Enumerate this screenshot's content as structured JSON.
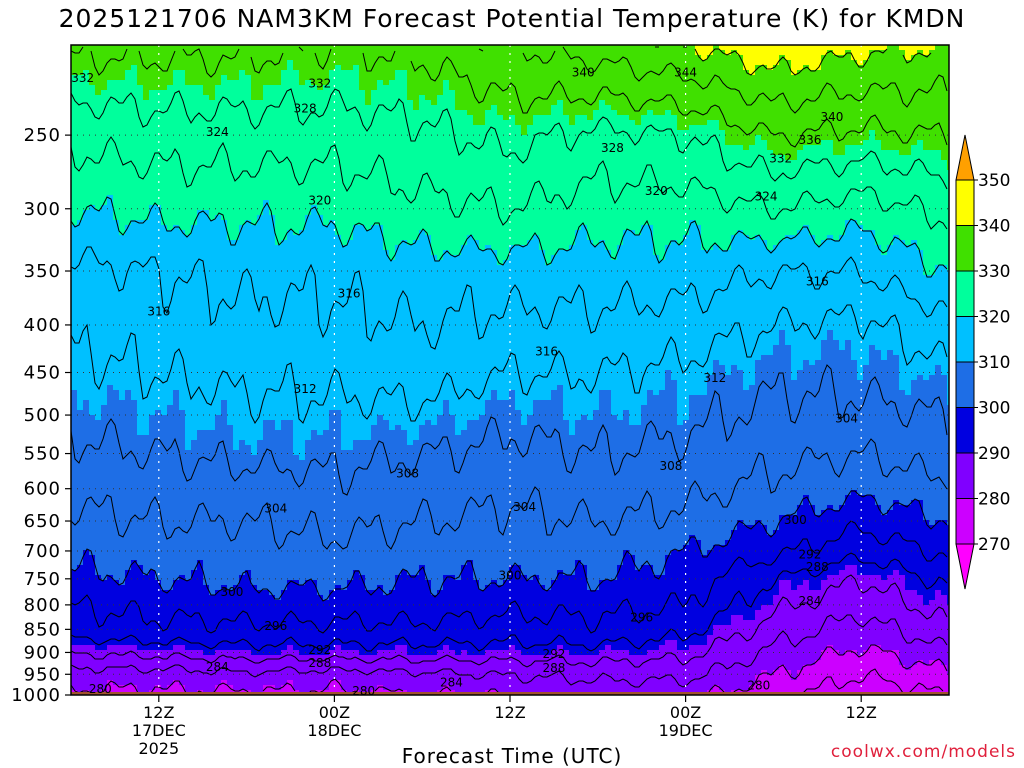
{
  "title": "2025121706 NAM3KM Forecast Potential Temperature (K) for KMDN",
  "watermark": "coolwx.com/models",
  "chart_data": {
    "type": "heatmap",
    "title": "2025121706 NAM3KM Forecast Potential Temperature (K) for KMDN",
    "xlabel": "Forecast Time (UTC)",
    "ylabel": "",
    "y_scale": "log",
    "y_inverted": true,
    "ylim": [
      1000,
      200
    ],
    "y_ticks": [
      250,
      300,
      350,
      400,
      450,
      500,
      550,
      600,
      650,
      700,
      750,
      800,
      850,
      900,
      950,
      1000
    ],
    "x_unit": "forecast hour",
    "xlim": [
      0,
      60
    ],
    "x_ticks": [
      {
        "hour": 6,
        "lines": [
          "12Z",
          "17DEC",
          "2025"
        ]
      },
      {
        "hour": 18,
        "lines": [
          "00Z",
          "18DEC"
        ]
      },
      {
        "hour": 30,
        "lines": [
          "12Z"
        ]
      },
      {
        "hour": 42,
        "lines": [
          "00Z",
          "19DEC"
        ]
      },
      {
        "hour": 54,
        "lines": [
          "12Z"
        ]
      }
    ],
    "grid": true,
    "colorbar": {
      "levels": [
        270,
        280,
        290,
        300,
        310,
        320,
        330,
        340,
        350
      ],
      "colors": [
        "#ff00ff",
        "#cc00ff",
        "#8000ff",
        "#0000e0",
        "#1e6ee6",
        "#00c0ff",
        "#00ff9c",
        "#40e000",
        "#ffff00",
        "#ffa000"
      ]
    },
    "ground_color": "#a0522d",
    "isotherm_labels": [
      {
        "value": "332",
        "hour": 0.8,
        "p": 217
      },
      {
        "value": "332",
        "hour": 17,
        "p": 220
      },
      {
        "value": "328",
        "hour": 16,
        "p": 234
      },
      {
        "value": "324",
        "hour": 10,
        "p": 248
      },
      {
        "value": "320",
        "hour": 17,
        "p": 294
      },
      {
        "value": "316",
        "hour": 6,
        "p": 387
      },
      {
        "value": "316",
        "hour": 19,
        "p": 370
      },
      {
        "value": "316",
        "hour": 32.5,
        "p": 427
      },
      {
        "value": "316",
        "hour": 51,
        "p": 359
      },
      {
        "value": "312",
        "hour": 16,
        "p": 469
      },
      {
        "value": "312",
        "hour": 44,
        "p": 456
      },
      {
        "value": "308",
        "hour": 23,
        "p": 578
      },
      {
        "value": "308",
        "hour": 41,
        "p": 567
      },
      {
        "value": "304",
        "hour": 14,
        "p": 630
      },
      {
        "value": "304",
        "hour": 31,
        "p": 628
      },
      {
        "value": "304",
        "hour": 53,
        "p": 504
      },
      {
        "value": "300",
        "hour": 11,
        "p": 775
      },
      {
        "value": "300",
        "hour": 30,
        "p": 744
      },
      {
        "value": "300",
        "hour": 49.5,
        "p": 648
      },
      {
        "value": "296",
        "hour": 14,
        "p": 843
      },
      {
        "value": "296",
        "hour": 39,
        "p": 825
      },
      {
        "value": "292",
        "hour": 17,
        "p": 895
      },
      {
        "value": "292",
        "hour": 33,
        "p": 903
      },
      {
        "value": "292",
        "hour": 50.5,
        "p": 706
      },
      {
        "value": "288",
        "hour": 17,
        "p": 924
      },
      {
        "value": "288",
        "hour": 33,
        "p": 935
      },
      {
        "value": "288",
        "hour": 51,
        "p": 728
      },
      {
        "value": "284",
        "hour": 10,
        "p": 933
      },
      {
        "value": "284",
        "hour": 26,
        "p": 970
      },
      {
        "value": "284",
        "hour": 50.5,
        "p": 792
      },
      {
        "value": "280",
        "hour": 2,
        "p": 985
      },
      {
        "value": "280",
        "hour": 20,
        "p": 990
      },
      {
        "value": "280",
        "hour": 47,
        "p": 977
      },
      {
        "value": "340",
        "hour": 35,
        "p": 214
      },
      {
        "value": "344",
        "hour": 42,
        "p": 214
      },
      {
        "value": "340",
        "hour": 52,
        "p": 239
      },
      {
        "value": "336",
        "hour": 50.5,
        "p": 253
      },
      {
        "value": "332",
        "hour": 48.5,
        "p": 265
      },
      {
        "value": "328",
        "hour": 37,
        "p": 258
      },
      {
        "value": "324",
        "hour": 47.5,
        "p": 291
      },
      {
        "value": "320",
        "hour": 40,
        "p": 287
      }
    ],
    "field": {
      "description_of_values": "potential temperature in K at pressure levels (hPa) and forecast hours",
      "pressure_levels": [
        1000,
        950,
        900,
        850,
        800,
        750,
        700,
        650,
        600,
        550,
        500,
        450,
        400,
        350,
        300,
        250,
        200
      ],
      "profiles": [
        {
          "hour": 0,
          "theta": [
            279,
            282,
            288,
            294,
            296,
            299,
            301,
            303,
            305,
            307,
            309,
            311,
            313,
            315,
            320,
            325,
            333
          ]
        },
        {
          "hour": 6,
          "theta": [
            279,
            282,
            289,
            295,
            297,
            300,
            302,
            304,
            306,
            308,
            310,
            312,
            314,
            316,
            321,
            326,
            333
          ]
        },
        {
          "hour": 12,
          "theta": [
            279,
            283,
            290,
            295,
            298,
            301,
            302,
            304,
            306,
            309,
            311,
            313,
            315,
            317,
            321,
            326,
            333
          ]
        },
        {
          "hour": 18,
          "theta": [
            279,
            282,
            290,
            295,
            298,
            301,
            303,
            305,
            307,
            309,
            311,
            313,
            315,
            317,
            321,
            326,
            332
          ]
        },
        {
          "hour": 24,
          "theta": [
            280,
            283,
            290,
            295,
            298,
            300,
            302,
            304,
            306,
            308,
            311,
            314,
            316,
            318,
            323,
            327,
            333
          ]
        },
        {
          "hour": 30,
          "theta": [
            280,
            284,
            290,
            294,
            297,
            300,
            302,
            303,
            305,
            307,
            309,
            312,
            315,
            318,
            324,
            329,
            336
          ]
        },
        {
          "hour": 36,
          "theta": [
            281,
            285,
            290,
            295,
            297,
            300,
            302,
            304,
            306,
            308,
            310,
            312,
            315,
            318,
            322,
            327,
            338
          ]
        },
        {
          "hour": 42,
          "theta": [
            281,
            285,
            289,
            293,
            296,
            298,
            300,
            303,
            305,
            307,
            309,
            311,
            314,
            318,
            322,
            328,
            340
          ]
        },
        {
          "hour": 48,
          "theta": [
            277,
            280,
            283,
            286,
            289,
            292,
            297,
            300,
            303,
            305,
            307,
            309,
            312,
            316,
            324,
            332,
            343
          ]
        },
        {
          "hour": 54,
          "theta": [
            273,
            276,
            279,
            282,
            285,
            288,
            293,
            297,
            301,
            304,
            307,
            309,
            311,
            316,
            322,
            331,
            341
          ]
        },
        {
          "hour": 60,
          "theta": [
            276,
            279,
            283,
            287,
            290,
            293,
            297,
            300,
            303,
            306,
            308,
            311,
            315,
            320,
            325,
            332,
            340
          ]
        }
      ]
    }
  }
}
